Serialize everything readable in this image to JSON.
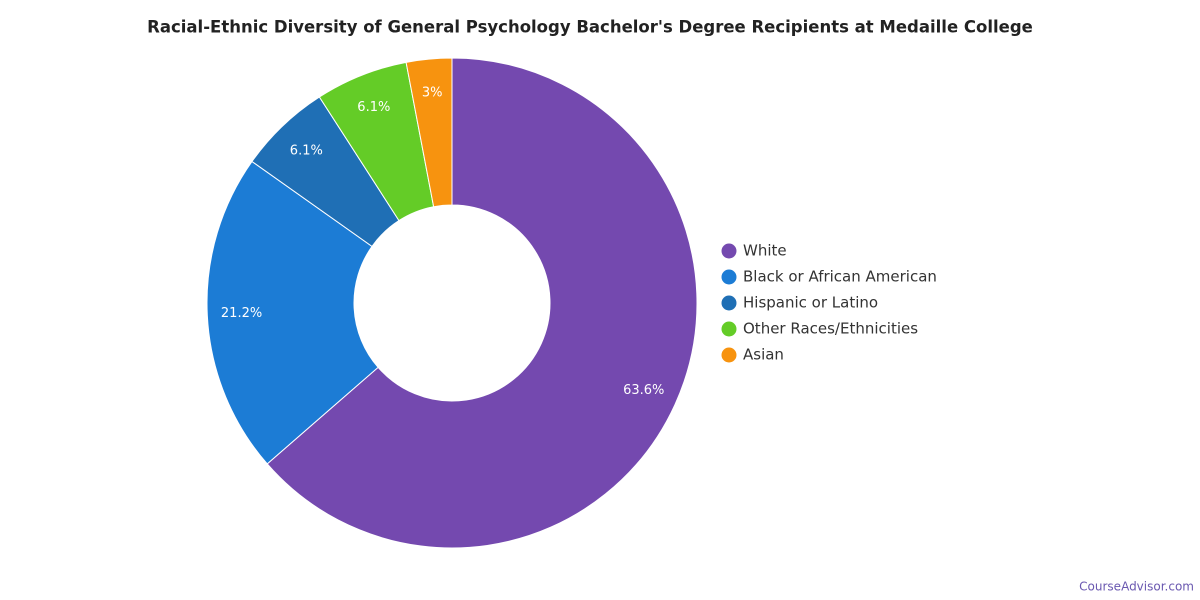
{
  "chart_data": {
    "type": "donut",
    "title": "Racial-Ethnic Diversity of General Psychology Bachelor's Degree Recipients at Medaille College",
    "categories": [
      "White",
      "Black or African American",
      "Hispanic or Latino",
      "Other Races/Ethnicities",
      "Asian"
    ],
    "values": [
      63.6,
      21.2,
      6.1,
      6.1,
      3
    ],
    "value_labels": [
      "63.6%",
      "21.2%",
      "6.1%",
      "6.1%",
      "3%"
    ],
    "colors": [
      "#7449af",
      "#1c7cd5",
      "#1f6fb5",
      "#64cc27",
      "#f7930f"
    ],
    "legend": "right"
  },
  "credit": "CourseAdvisor.com"
}
